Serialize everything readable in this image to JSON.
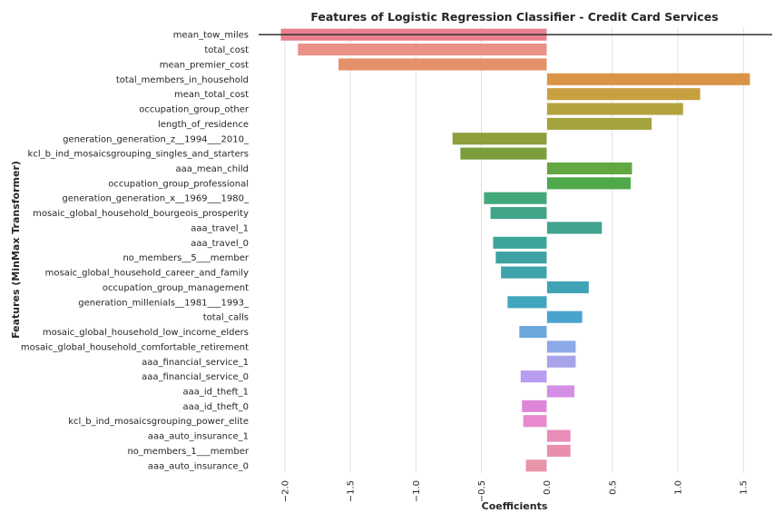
{
  "chart_data": {
    "type": "bar",
    "orientation": "horizontal",
    "title": "Features of Logistic Regression Classifier - Credit Card Services",
    "xlabel": "Coefficients",
    "ylabel": "Features (MinMax Transformer)",
    "xlim": [
      -2.2,
      1.72
    ],
    "xticks": [
      -2.0,
      -1.5,
      -1.0,
      -0.5,
      0.0,
      0.5,
      1.0,
      1.5
    ],
    "xtick_labels": [
      "−2.0",
      "−1.5",
      "−1.0",
      "−0.5",
      "0.0",
      "0.5",
      "1.0",
      "1.5"
    ],
    "grid": "vertical",
    "categories": [
      "mean_tow_miles",
      "total_cost",
      "mean_premier_cost",
      "total_members_in_household",
      "mean_total_cost",
      "occupation_group_other",
      "length_of_residence",
      "generation_generation_z__1994___2010_",
      "kcl_b_ind_mosaicsgrouping_singles_and_starters",
      "aaa_mean_child",
      "occupation_group_professional",
      "generation_generation_x__1969___1980_",
      "mosaic_global_household_bourgeois_prosperity",
      "aaa_travel_1",
      "aaa_travel_0",
      "no_members__5___member",
      "mosaic_global_household_career_and_family",
      "occupation_group_management",
      "generation_millenials__1981___1993_",
      "total_calls",
      "mosaic_global_household_low_income_elders",
      "mosaic_global_household_comfortable_retirement",
      "aaa_financial_service_1",
      "aaa_financial_service_0",
      "aaa_id_theft_1",
      "aaa_id_theft_0",
      "kcl_b_ind_mosaicsgrouping_power_elite",
      "aaa_auto_insurance_1",
      "no_members_1___member",
      "aaa_auto_insurance_0"
    ],
    "values": [
      -2.03,
      -1.9,
      -1.59,
      1.55,
      1.17,
      1.04,
      0.8,
      -0.72,
      -0.66,
      0.65,
      0.64,
      -0.48,
      -0.43,
      0.42,
      -0.41,
      -0.39,
      -0.35,
      0.32,
      -0.3,
      0.27,
      -0.21,
      0.22,
      0.22,
      -0.2,
      0.21,
      -0.19,
      -0.18,
      0.18,
      0.18,
      -0.16
    ],
    "colors": [
      "#e8808e",
      "#e99187",
      "#e59068",
      "#da9448",
      "#c9a040",
      "#b4a23f",
      "#a4a33e",
      "#8e9f3d",
      "#7b9e3c",
      "#62a741",
      "#4fa94b",
      "#43a87a",
      "#42a489",
      "#41a38f",
      "#3ea49a",
      "#3fa2a2",
      "#3ea3aa",
      "#3fa3b5",
      "#40a6be",
      "#4aa3cc",
      "#6ba7dc",
      "#8ea9e8",
      "#a7a4ea",
      "#b99df0",
      "#d58ee6",
      "#df86d8",
      "#e889cf",
      "#e98cba",
      "#e98fae",
      "#e894a8"
    ]
  }
}
